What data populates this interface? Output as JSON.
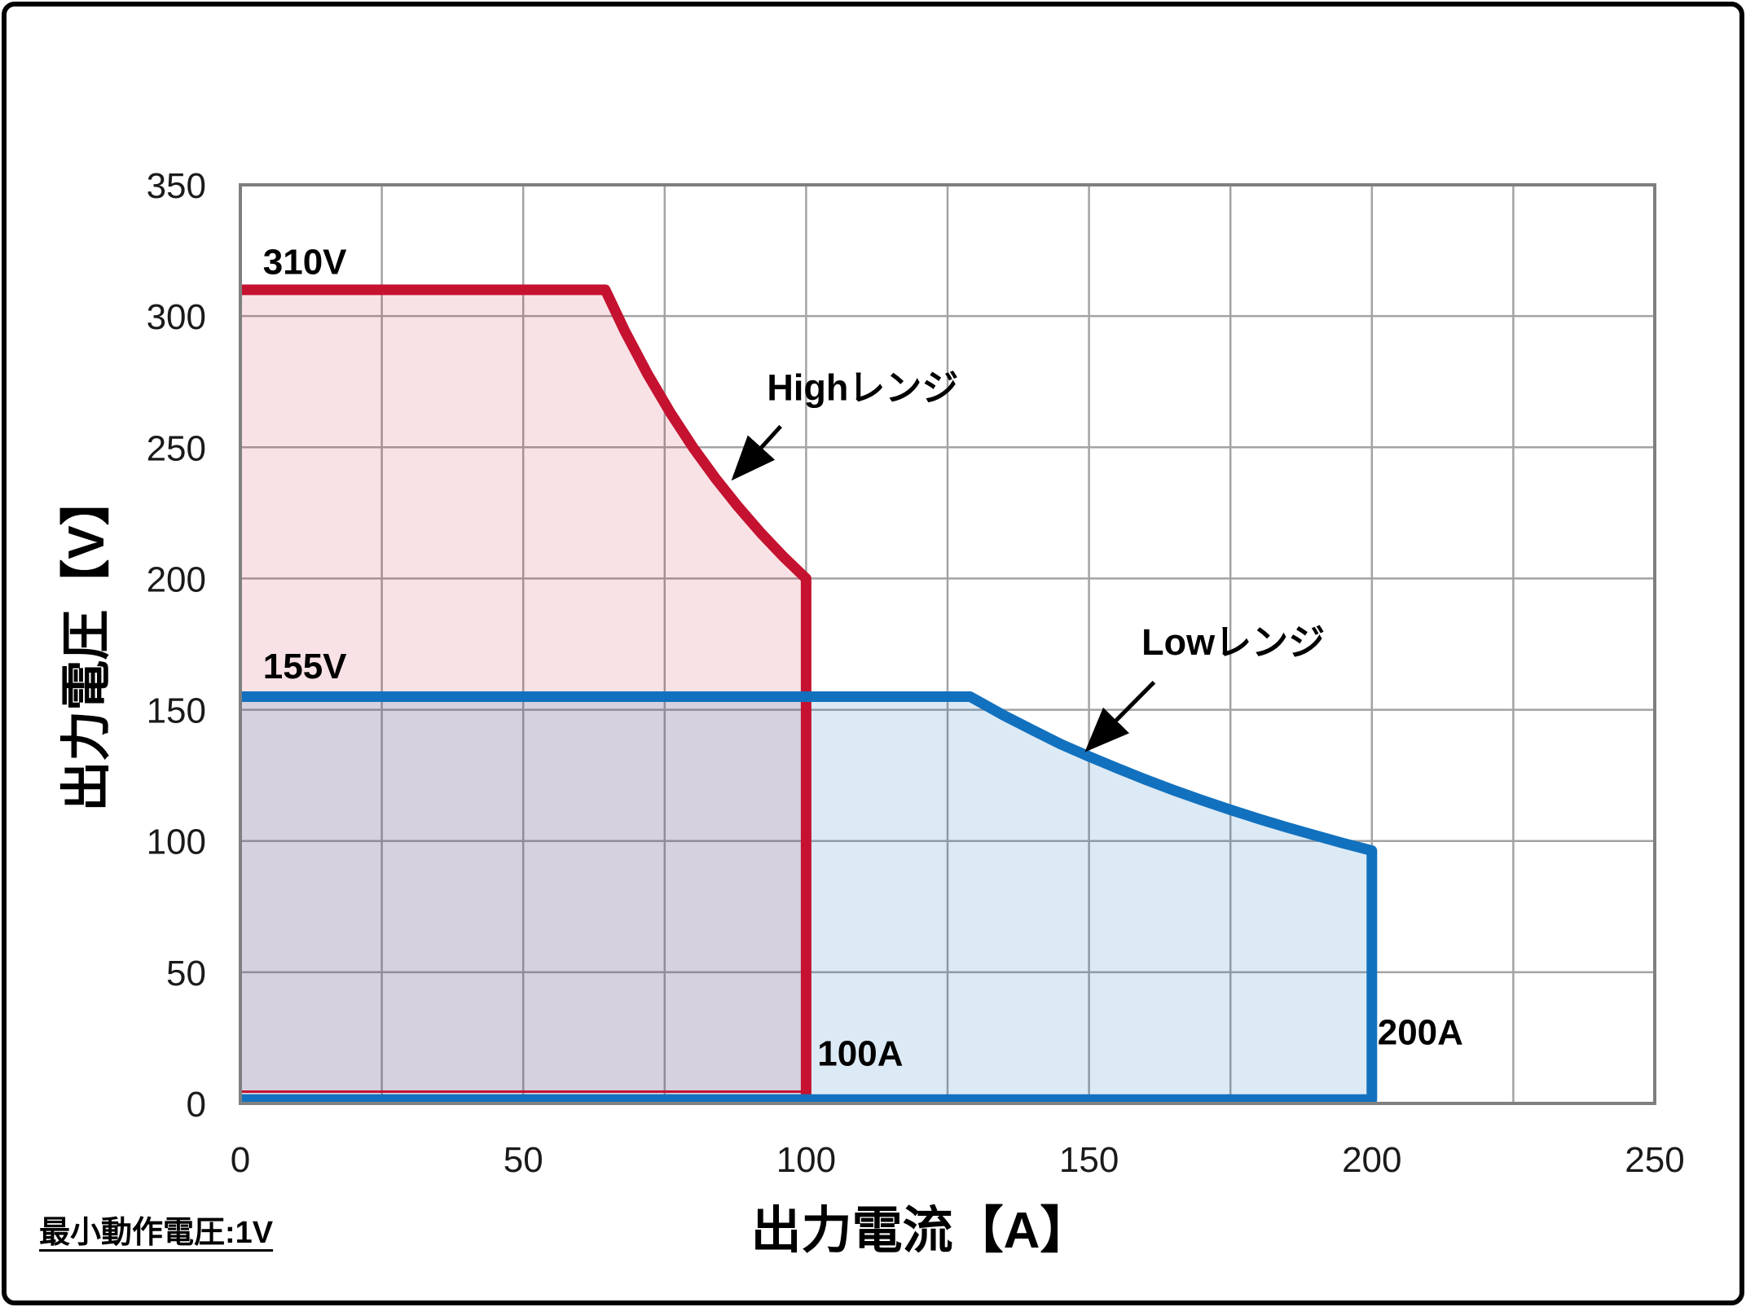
{
  "figure": {
    "background": "#ffffff",
    "border_color": "#000000",
    "grid_color": "#a3a3a3",
    "plot_border_color": "#7f7f7f"
  },
  "footnote": "最小動作電圧:1V",
  "chart_data": {
    "type": "area",
    "title": "",
    "xlabel": "出力電流【A】",
    "ylabel": "出力電圧【V】",
    "xlim": [
      0,
      250
    ],
    "ylim": [
      0,
      350
    ],
    "x_ticks": [
      0,
      50,
      100,
      150,
      200,
      250
    ],
    "y_ticks": [
      0,
      50,
      100,
      150,
      200,
      250,
      300,
      350
    ],
    "x_grid_step": 25,
    "y_grid_step": 50,
    "grid": true,
    "legend_position": "none",
    "series": [
      {
        "name": "Highレンジ",
        "max_voltage_v": 310,
        "max_current_a": 100,
        "line_color": "#C41230",
        "fill_color": "rgba(196,18,48,0.12)",
        "stroke_points": [
          [
            0,
            310
          ],
          [
            64.5,
            310
          ],
          [
            68,
            294.1
          ],
          [
            72,
            277.8
          ],
          [
            76,
            263.2
          ],
          [
            80,
            250
          ],
          [
            84,
            238.1
          ],
          [
            88,
            227.3
          ],
          [
            92,
            217.4
          ],
          [
            96,
            208.3
          ],
          [
            100,
            200
          ],
          [
            100,
            1.5
          ]
        ],
        "fill_points": [
          [
            0,
            310
          ],
          [
            64.5,
            310
          ],
          [
            68,
            294.1
          ],
          [
            72,
            277.8
          ],
          [
            76,
            263.2
          ],
          [
            80,
            250
          ],
          [
            84,
            238.1
          ],
          [
            88,
            227.3
          ],
          [
            92,
            217.4
          ],
          [
            96,
            208.3
          ],
          [
            100,
            200
          ],
          [
            100,
            1.5
          ],
          [
            0,
            1.5
          ]
        ],
        "extra_lines": [
          {
            "points": [
              [
                0,
                4.5
              ],
              [
                100,
                4.5
              ]
            ],
            "width": 3
          }
        ]
      },
      {
        "name": "Lowレンジ",
        "max_voltage_v": 155,
        "max_current_a": 200,
        "line_color": "#1271BE",
        "fill_color": "rgba(18,113,190,0.15)",
        "stroke_points": [
          [
            0,
            155
          ],
          [
            129,
            155
          ],
          [
            135,
            147.8
          ],
          [
            140,
            142.3
          ],
          [
            145,
            136.9
          ],
          [
            150,
            132.2
          ],
          [
            155,
            127.7
          ],
          [
            160,
            123.4
          ],
          [
            165,
            119.3
          ],
          [
            170,
            115.5
          ],
          [
            175,
            111.9
          ],
          [
            180,
            108.4
          ],
          [
            185,
            105.2
          ],
          [
            190,
            102.1
          ],
          [
            195,
            99.1
          ],
          [
            200,
            96.3
          ],
          [
            200,
            1.5
          ],
          [
            0,
            1.5
          ]
        ],
        "fill_points": [
          [
            0,
            155
          ],
          [
            129,
            155
          ],
          [
            135,
            147.8
          ],
          [
            140,
            142.3
          ],
          [
            145,
            136.9
          ],
          [
            150,
            132.2
          ],
          [
            155,
            127.7
          ],
          [
            160,
            123.4
          ],
          [
            165,
            119.3
          ],
          [
            170,
            115.5
          ],
          [
            175,
            111.9
          ],
          [
            180,
            108.4
          ],
          [
            185,
            105.2
          ],
          [
            190,
            102.1
          ],
          [
            195,
            99.1
          ],
          [
            200,
            96.3
          ],
          [
            200,
            1.5
          ],
          [
            0,
            1.5
          ]
        ],
        "extra_lines": []
      }
    ],
    "annotations": [
      {
        "id": "label-310v",
        "text": "310V",
        "x": 4,
        "y": 316,
        "anchor": "start",
        "class": "value-label"
      },
      {
        "id": "label-155v",
        "text": "155V",
        "x": 4,
        "y": 162,
        "anchor": "start",
        "class": "value-label"
      },
      {
        "id": "label-100a",
        "text": "100A",
        "x": 102,
        "y": 14.5,
        "anchor": "start",
        "class": "value-label"
      },
      {
        "id": "label-200a",
        "text": "200A",
        "x": 201,
        "y": 22.5,
        "anchor": "start",
        "class": "value-label"
      },
      {
        "id": "label-high-range",
        "text": "Highレンジ",
        "x": 110,
        "y": 268,
        "anchor": "middle",
        "class": "range-label"
      },
      {
        "id": "label-low-range",
        "text": "Lowレンジ",
        "x": 175.5,
        "y": 171,
        "anchor": "middle",
        "class": "range-label"
      }
    ],
    "arrows": [
      {
        "id": "arrow-high-range",
        "from": [
          95.5,
          258
        ],
        "to": [
          87.5,
          239
        ]
      },
      {
        "id": "arrow-low-range",
        "from": [
          161.5,
          160.5
        ],
        "to": [
          150,
          135.5
        ]
      }
    ]
  }
}
